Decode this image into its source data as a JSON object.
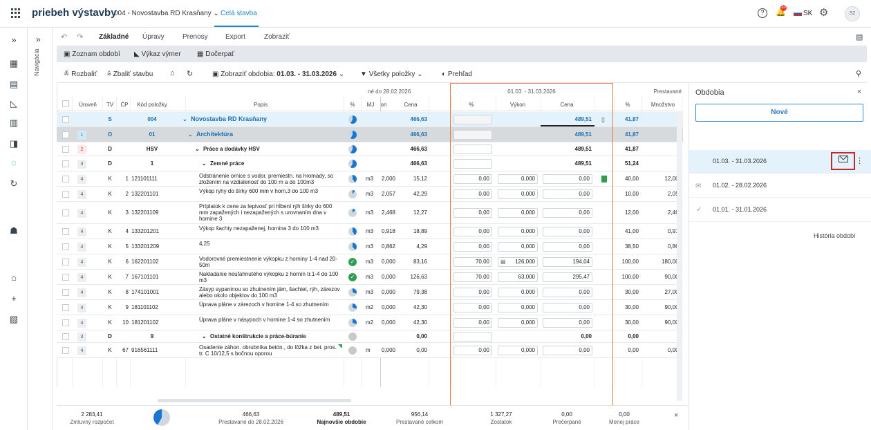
{
  "app": {
    "title": "priebeh výstavby",
    "project": "004 - Novostavba RD Krasňany",
    "project_arrow": "⌄",
    "scope": "Celá stavba",
    "lang": "SK",
    "avatar": "S2",
    "notif_count": "20"
  },
  "nav": {
    "label": "Navigácia"
  },
  "tabs": [
    "Základné",
    "Úpravy",
    "Prenosy",
    "Export",
    "Zobraziť"
  ],
  "subtoolbar": {
    "periods": "Zoznam období",
    "report": "Výkaz výmer",
    "drawdown": "Dočerpať"
  },
  "filterbar": {
    "expand": "Rozbaliť",
    "collapse": "Zbaliť stavbu",
    "show_periods": "Zobraziť obdobia:",
    "period_range": "01.03. - 31.03.2026",
    "all_items": "Všetky položky",
    "overview": "Prehľad"
  },
  "table": {
    "group_headers": {
      "prev": "né do 28.02.2026",
      "current": "01.03. - 31.03.2026",
      "done": "Prestavané"
    },
    "columns": {
      "level": "Úroveň",
      "tv": "TV",
      "cp": "ČP",
      "code": "Kód položky",
      "desc": "Popis",
      "pct": "%",
      "mj": "MJ",
      "prev_qty": "on",
      "prev_price": "Cena",
      "cur_pct": "%",
      "cur_perf": "Výkon",
      "cur_price": "Cena",
      "done_pct": "%",
      "done_qty": "Množstvo"
    },
    "rows": [
      {
        "lvl": "",
        "tv": "S",
        "cp": "",
        "code": "004",
        "desc": "Novostavba RD Krasňany",
        "mj": "",
        "pq": "",
        "pp": "466,63",
        "cpct": "",
        "cperf": "",
        "cprice": "489,51",
        "dpct": "41,87",
        "dq": "",
        "kind": "root",
        "pie": 0.58
      },
      {
        "lvl": "1",
        "tv": "O",
        "cp": "",
        "code": "01",
        "desc": "Architektúra",
        "mj": "",
        "pq": "",
        "pp": "466,63",
        "cpct": "",
        "cperf": "",
        "cprice": "489,51",
        "dpct": "41,87",
        "dq": "",
        "kind": "obj",
        "pie": 0.58
      },
      {
        "lvl": "2",
        "tv": "D",
        "cp": "",
        "code": "HSV",
        "desc": "Práce a dodávky HSV",
        "mj": "",
        "pq": "",
        "pp": "466,63",
        "cpct": "",
        "cperf": "",
        "cprice": "489,51",
        "dpct": "41,87",
        "dq": "",
        "kind": "d1",
        "pie": 0.58
      },
      {
        "lvl": "3",
        "tv": "D",
        "cp": "",
        "code": "1",
        "desc": "Zemné práce",
        "mj": "",
        "pq": "",
        "pp": "466,63",
        "cpct": "",
        "cperf": "",
        "cprice": "489,51",
        "dpct": "51,24",
        "dq": "",
        "kind": "d2",
        "pie": 0.58
      },
      {
        "lvl": "4",
        "tv": "K",
        "cp": "1",
        "code": "121101111",
        "desc": "Odstránenie ornice s vodor. premiestn. na hromady, so zložením na vzdialenosť do 100 m a do 100m3",
        "mj": "m3",
        "pq": "2,000",
        "pp": "15,12",
        "cpct": "0,00",
        "cperf": "0,000",
        "cprice": "0,00",
        "dpct": "40,00",
        "dq": "12,000",
        "kind": "k",
        "pie": 0.4
      },
      {
        "lvl": "4",
        "tv": "K",
        "cp": "2",
        "code": "132201101",
        "desc": "Výkop ryhy do šírky 600 mm v horn.3 do 100 m3",
        "mj": "m3",
        "pq": "2,057",
        "pp": "42,29",
        "cpct": "0,00",
        "cperf": "0,000",
        "cprice": "0,00",
        "dpct": "10,00",
        "dq": "2,057",
        "kind": "k",
        "pie": 0.1
      },
      {
        "lvl": "4",
        "tv": "K",
        "cp": "3",
        "code": "132201109",
        "desc": "Príplatok k cene za lepivosť pri hĺbení rýh šírky do 600 mm zapažených i nezapažených s urovnaním dna v hornine 3",
        "mj": "m3",
        "pq": "2,468",
        "pp": "12,27",
        "cpct": "0,00",
        "cperf": "0,000",
        "cprice": "0,00",
        "dpct": "12,00",
        "dq": "2,468",
        "kind": "k",
        "pie": 0.12
      },
      {
        "lvl": "4",
        "tv": "K",
        "cp": "4",
        "code": "133201201",
        "desc": "Výkop šachty nezapaženej, hornina 3 do 100 m3",
        "mj": "m3",
        "pq": "0,918",
        "pp": "18,89",
        "cpct": "0,00",
        "cperf": "0,000",
        "cprice": "0,00",
        "dpct": "41,00",
        "dq": "0,918",
        "kind": "k",
        "pie": 0.41
      },
      {
        "lvl": "4",
        "tv": "K",
        "cp": "5",
        "code": "133201209",
        "desc": "4,25",
        "mj": "m3",
        "pq": "0,862",
        "pp": "4,29",
        "cpct": "0,00",
        "cperf": "0,000",
        "cprice": "0,00",
        "dpct": "38,50",
        "dq": "0,862",
        "kind": "k",
        "pie": 0.385
      },
      {
        "lvl": "4",
        "tv": "K",
        "cp": "6",
        "code": "162201102",
        "desc": "Vodorovné premiestnenie výkopku z horniny 1-4 nad 20-50m",
        "mj": "m3",
        "pq": "0,000",
        "pp": "83,16",
        "cpct": "70,00",
        "cperf": "126,000",
        "cprice": "194,04",
        "dpct": "100,00",
        "dq": "180,000",
        "kind": "k",
        "pie": 1
      },
      {
        "lvl": "4",
        "tv": "K",
        "cp": "7",
        "code": "167101101",
        "desc": "Nakladanie neuľahnutého výkopku z hornín tr.1-4 do 100 m3",
        "mj": "m3",
        "pq": "0,000",
        "pp": "126,63",
        "cpct": "70,00",
        "cperf": "63,000",
        "cprice": "295,47",
        "dpct": "100,00",
        "dq": "90,000",
        "kind": "k",
        "pie": 1
      },
      {
        "lvl": "4",
        "tv": "K",
        "cp": "8",
        "code": "174101001",
        "desc": "Zásyp sypaninou so zhutnením jám, šachiet, rýh, zárezov alebo okolo objektov do 100 m3",
        "mj": "m3",
        "pq": "0,000",
        "pp": "79,38",
        "cpct": "0,00",
        "cperf": "0,000",
        "cprice": "0,00",
        "dpct": "30,00",
        "dq": "27,000",
        "kind": "k",
        "pie": 0.3
      },
      {
        "lvl": "4",
        "tv": "K",
        "cp": "9",
        "code": "181101102",
        "desc": "Úprava pláne v zárezoch v hornine 1-4 so zhutnením",
        "mj": "m2",
        "pq": "0,000",
        "pp": "42,30",
        "cpct": "0,00",
        "cperf": "0,000",
        "cprice": "0,00",
        "dpct": "30,00",
        "dq": "90,000",
        "kind": "k",
        "pie": 0.3
      },
      {
        "lvl": "4",
        "tv": "K",
        "cp": "10",
        "code": "181201102",
        "desc": "Úprava pláne v násypoch v hornine 1-4 so zhutnením",
        "mj": "m2",
        "pq": "0,000",
        "pp": "42,30",
        "cpct": "0,00",
        "cperf": "0,000",
        "cprice": "0,00",
        "dpct": "30,00",
        "dq": "90,000",
        "kind": "k",
        "pie": 0.3
      },
      {
        "lvl": "3",
        "tv": "D",
        "cp": "",
        "code": "9",
        "desc": "Ostatné konštrukcie a práce-búranie",
        "mj": "",
        "pq": "",
        "pp": "0,00",
        "cpct": "",
        "cperf": "",
        "cprice": "0,00",
        "dpct": "0,00",
        "dq": "",
        "kind": "d2",
        "pie": 0
      },
      {
        "lvl": "4",
        "tv": "K",
        "cp": "67",
        "code": "916561111",
        "desc": "Osadenie záhon. obrubníka betón., do lôžka z bet. pros. tr. C 10/12,5 s bočnou oporou",
        "mj": "m",
        "pq": "0,000",
        "pp": "0,00",
        "cpct": "0,00",
        "cperf": "0,000",
        "cprice": "0,00",
        "dpct": "0,00",
        "dq": "0,000",
        "kind": "k",
        "pie": 0
      }
    ]
  },
  "footer": [
    {
      "value": "2 283,41",
      "label": "Zmluvný rozpočet"
    },
    {
      "value": "466,63",
      "label": "Prestavané do 28.02.2026"
    },
    {
      "value": "489,51",
      "label": "Najnovšie obdobie"
    },
    {
      "value": "956,14",
      "label": "Prestavané celkom"
    },
    {
      "value": "1 327,27",
      "label": "Zostatok"
    },
    {
      "value": "0,00",
      "label": "Prečerpané"
    },
    {
      "value": "0,00",
      "label": "Menej práce"
    }
  ],
  "footer_pie": 0.42,
  "panel": {
    "title": "Obdobia",
    "new_button": "Nové",
    "periods": [
      "01.03. - 31.03.2026",
      "01.02. - 28.02.2026",
      "01.01. - 31.01.2026"
    ],
    "history": "História období"
  },
  "colors": {
    "accent": "#1e88c8",
    "pie": "#1976d2",
    "ok": "#2e9e4f",
    "highlight": "#c62828"
  }
}
